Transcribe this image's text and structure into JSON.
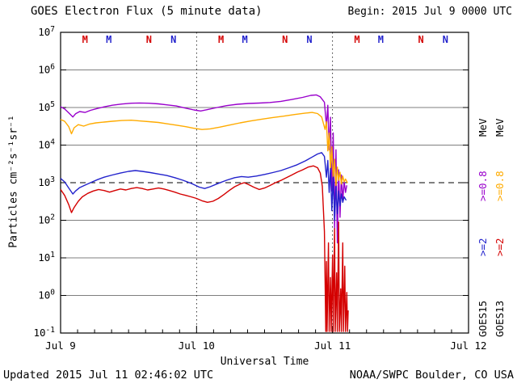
{
  "header": {
    "title": "GOES Electron Flux (5 minute data)",
    "begin": "Begin: 2015 Jul 9 0000 UTC"
  },
  "footer": {
    "updated": "Updated 2015 Jul 11 02:46:02 UTC",
    "credit": "NOAA/SWPC Boulder, CO USA"
  },
  "chart_data": {
    "type": "line",
    "title": "GOES Electron Flux (5 minute data)",
    "xlabel": "Universal Time",
    "ylabel": "Particles cm⁻²s⁻¹sr⁻¹",
    "x_range_days": [
      0,
      3
    ],
    "x_ticks": [
      {
        "t": 0,
        "label": "Jul 9"
      },
      {
        "t": 1,
        "label": "Jul 10"
      },
      {
        "t": 2,
        "label": "Jul 11"
      },
      {
        "t": 3,
        "label": "Jul 12"
      }
    ],
    "y_log_range": [
      -1,
      7
    ],
    "grid": true,
    "y_scale": "log10",
    "threshold_value": 1000,
    "day_boundaries": [
      1,
      2
    ],
    "axis_color": "#000000",
    "legend_position": "right-rotated",
    "series": [
      {
        "name": "GOES15 >=0.8 MeV",
        "color": "#9900cc",
        "points": [
          [
            0.0,
            105000.0
          ],
          [
            0.03,
            92000.0
          ],
          [
            0.06,
            72000.0
          ],
          [
            0.09,
            56000.0
          ],
          [
            0.11,
            68000.0
          ],
          [
            0.14,
            78000.0
          ],
          [
            0.18,
            74000.0
          ],
          [
            0.22,
            84000.0
          ],
          [
            0.27,
            94000.0
          ],
          [
            0.32,
            104000.0
          ],
          [
            0.38,
            115000.0
          ],
          [
            0.45,
            124000.0
          ],
          [
            0.52,
            130000.0
          ],
          [
            0.58,
            132000.0
          ],
          [
            0.65,
            130000.0
          ],
          [
            0.72,
            125000.0
          ],
          [
            0.78,
            118000.0
          ],
          [
            0.85,
            110000.0
          ],
          [
            0.92,
            96000.0
          ],
          [
            0.98,
            86000.0
          ],
          [
            1.03,
            81000.0
          ],
          [
            1.08,
            88000.0
          ],
          [
            1.15,
            100000.0
          ],
          [
            1.22,
            112000.0
          ],
          [
            1.3,
            122000.0
          ],
          [
            1.38,
            128000.0
          ],
          [
            1.46,
            131000.0
          ],
          [
            1.54,
            136000.0
          ],
          [
            1.62,
            146000.0
          ],
          [
            1.7,
            163000.0
          ],
          [
            1.78,
            186000.0
          ],
          [
            1.84,
            210000.0
          ],
          [
            1.88,
            216000.0
          ],
          [
            1.91,
            192000.0
          ],
          [
            1.94,
            138000.0
          ],
          [
            1.955,
            32000.0
          ],
          [
            1.965,
            115000.0
          ],
          [
            1.975,
            7500.0
          ],
          [
            1.985,
            55000.0
          ],
          [
            1.995,
            600.0
          ],
          [
            2.005,
            21000.0
          ],
          [
            2.015,
            60.0
          ],
          [
            2.025,
            7500.0
          ],
          [
            2.035,
            25.0
          ],
          [
            2.045,
            2200.0
          ],
          [
            2.055,
            120.0
          ],
          [
            2.065,
            1600.0
          ],
          [
            2.075,
            320.0
          ],
          [
            2.085,
            1100.0
          ],
          [
            2.095,
            550.0
          ],
          [
            2.105,
            850.0
          ]
        ]
      },
      {
        "name": "GOES13 >=0.8 MeV",
        "color": "#ffab00",
        "points": [
          [
            0.0,
            48000.0
          ],
          [
            0.03,
            43000.0
          ],
          [
            0.06,
            31000.0
          ],
          [
            0.08,
            20000.0
          ],
          [
            0.1,
            29000.0
          ],
          [
            0.13,
            35000.0
          ],
          [
            0.17,
            32000.0
          ],
          [
            0.21,
            36000.0
          ],
          [
            0.26,
            39000.0
          ],
          [
            0.32,
            41000.0
          ],
          [
            0.38,
            43000.0
          ],
          [
            0.45,
            45000.0
          ],
          [
            0.52,
            46000.0
          ],
          [
            0.58,
            44000.0
          ],
          [
            0.65,
            42000.0
          ],
          [
            0.72,
            40000.0
          ],
          [
            0.78,
            37000.0
          ],
          [
            0.85,
            34000.0
          ],
          [
            0.92,
            31000.0
          ],
          [
            0.98,
            28000.0
          ],
          [
            1.04,
            26000.0
          ],
          [
            1.1,
            27000.0
          ],
          [
            1.17,
            30000.0
          ],
          [
            1.24,
            34000.0
          ],
          [
            1.32,
            39000.0
          ],
          [
            1.4,
            44000.0
          ],
          [
            1.48,
            49000.0
          ],
          [
            1.56,
            54000.0
          ],
          [
            1.64,
            59000.0
          ],
          [
            1.72,
            65000.0
          ],
          [
            1.8,
            71000.0
          ],
          [
            1.85,
            74000.0
          ],
          [
            1.89,
            69000.0
          ],
          [
            1.92,
            56000.0
          ],
          [
            1.945,
            26000.0
          ],
          [
            1.955,
            42000.0
          ],
          [
            1.965,
            7000.0
          ],
          [
            1.975,
            21000.0
          ],
          [
            1.985,
            2200.0
          ],
          [
            1.995,
            9000.0
          ],
          [
            2.005,
            1300.0
          ],
          [
            2.015,
            4200.0
          ],
          [
            2.025,
            850.0
          ],
          [
            2.035,
            2600.0
          ],
          [
            2.045,
            1150.0
          ],
          [
            2.055,
            1900.0
          ],
          [
            2.065,
            920.0
          ],
          [
            2.075,
            1500.0
          ],
          [
            2.085,
            1050.0
          ],
          [
            2.095,
            1250.0
          ],
          [
            2.11,
            980.0
          ]
        ]
      },
      {
        "name": "GOES15 >=2 MeV",
        "color": "#2222cc",
        "points": [
          [
            0.0,
            1300.0
          ],
          [
            0.03,
            1050.0
          ],
          [
            0.06,
            720.0
          ],
          [
            0.09,
            500.0
          ],
          [
            0.11,
            600.0
          ],
          [
            0.14,
            740.0
          ],
          [
            0.18,
            860.0
          ],
          [
            0.22,
            1000.0
          ],
          [
            0.27,
            1200.0
          ],
          [
            0.32,
            1400.0
          ],
          [
            0.38,
            1600.0
          ],
          [
            0.44,
            1800.0
          ],
          [
            0.5,
            2000.0
          ],
          [
            0.55,
            2100.0
          ],
          [
            0.6,
            2000.0
          ],
          [
            0.66,
            1860.0
          ],
          [
            0.72,
            1700.0
          ],
          [
            0.78,
            1550.0
          ],
          [
            0.84,
            1360.0
          ],
          [
            0.9,
            1160.0
          ],
          [
            0.96,
            960.0
          ],
          [
            1.02,
            760.0
          ],
          [
            1.06,
            700.0
          ],
          [
            1.1,
            780.0
          ],
          [
            1.16,
            960.0
          ],
          [
            1.22,
            1160.0
          ],
          [
            1.28,
            1360.0
          ],
          [
            1.33,
            1460.0
          ],
          [
            1.38,
            1400.0
          ],
          [
            1.44,
            1500.0
          ],
          [
            1.5,
            1660.0
          ],
          [
            1.56,
            1860.0
          ],
          [
            1.62,
            2100.0
          ],
          [
            1.68,
            2500.0
          ],
          [
            1.74,
            3000.0
          ],
          [
            1.8,
            3800.0
          ],
          [
            1.85,
            4800.0
          ],
          [
            1.89,
            5800.0
          ],
          [
            1.92,
            6300.0
          ],
          [
            1.94,
            5000.0
          ],
          [
            1.955,
            1400.0
          ],
          [
            1.965,
            3900.0
          ],
          [
            1.975,
            550.0
          ],
          [
            1.985,
            2400.0
          ],
          [
            1.995,
            180.0
          ],
          [
            2.005,
            1400.0
          ],
          [
            2.015,
            100.0
          ],
          [
            2.025,
            780.0
          ],
          [
            2.035,
            150.0
          ],
          [
            2.045,
            600.0
          ],
          [
            2.055,
            240.0
          ],
          [
            2.065,
            500.0
          ],
          [
            2.075,
            300.0
          ],
          [
            2.085,
            420.0
          ],
          [
            2.1,
            340.0
          ]
        ]
      },
      {
        "name": "GOES13 >=2 MeV",
        "color": "#d40000",
        "points": [
          [
            0.0,
            660.0
          ],
          [
            0.03,
            460.0
          ],
          [
            0.06,
            260.0
          ],
          [
            0.08,
            160.0
          ],
          [
            0.1,
            220.0
          ],
          [
            0.13,
            320.0
          ],
          [
            0.16,
            420.0
          ],
          [
            0.2,
            520.0
          ],
          [
            0.24,
            600.0
          ],
          [
            0.28,
            660.0
          ],
          [
            0.32,
            620.0
          ],
          [
            0.36,
            560.0
          ],
          [
            0.4,
            620.0
          ],
          [
            0.44,
            680.0
          ],
          [
            0.48,
            640.0
          ],
          [
            0.52,
            700.0
          ],
          [
            0.56,
            740.0
          ],
          [
            0.6,
            700.0
          ],
          [
            0.64,
            640.0
          ],
          [
            0.68,
            680.0
          ],
          [
            0.72,
            720.0
          ],
          [
            0.76,
            680.0
          ],
          [
            0.8,
            620.0
          ],
          [
            0.84,
            560.0
          ],
          [
            0.88,
            500.0
          ],
          [
            0.92,
            460.0
          ],
          [
            0.96,
            420.0
          ],
          [
            1.0,
            380.0
          ],
          [
            1.04,
            330.0
          ],
          [
            1.08,
            300.0
          ],
          [
            1.12,
            320.0
          ],
          [
            1.16,
            380.0
          ],
          [
            1.2,
            480.0
          ],
          [
            1.24,
            620.0
          ],
          [
            1.28,
            780.0
          ],
          [
            1.32,
            920.0
          ],
          [
            1.35,
            1000.0
          ],
          [
            1.38,
            900.0
          ],
          [
            1.42,
            760.0
          ],
          [
            1.46,
            660.0
          ],
          [
            1.5,
            720.0
          ],
          [
            1.54,
            840.0
          ],
          [
            1.58,
            1000.0
          ],
          [
            1.62,
            1150.0
          ],
          [
            1.66,
            1350.0
          ],
          [
            1.7,
            1600.0
          ],
          [
            1.74,
            1900.0
          ],
          [
            1.78,
            2200.0
          ],
          [
            1.82,
            2600.0
          ],
          [
            1.86,
            2800.0
          ],
          [
            1.89,
            2500.0
          ],
          [
            1.91,
            1800.0
          ],
          [
            1.925,
            800.0
          ],
          [
            1.94,
            50.0
          ],
          [
            1.95,
            0.11
          ],
          [
            1.955,
            8.0
          ],
          [
            1.96,
            0.11
          ],
          [
            1.97,
            25.0
          ],
          [
            1.975,
            0.11
          ],
          [
            1.985,
            3.0
          ],
          [
            1.99,
            0.11
          ],
          [
            2.0,
            12.0
          ],
          [
            2.005,
            0.11
          ],
          [
            2.015,
            60.0
          ],
          [
            2.02,
            0.11
          ],
          [
            2.03,
            4.0
          ],
          [
            2.035,
            0.11
          ],
          [
            2.045,
            90.0
          ],
          [
            2.05,
            0.11
          ],
          [
            2.06,
            1.5
          ],
          [
            2.065,
            0.11
          ],
          [
            2.075,
            25.0
          ],
          [
            2.08,
            0.11
          ],
          [
            2.09,
            6.0
          ],
          [
            2.095,
            0.11
          ],
          [
            2.105,
            1.2
          ],
          [
            2.11,
            0.11
          ],
          [
            2.115,
            0.4
          ]
        ]
      }
    ],
    "markers": [
      {
        "t": 0.18,
        "label": "M",
        "satellite": "GOES13",
        "color": "#d40000"
      },
      {
        "t": 0.355,
        "label": "M",
        "satellite": "GOES15",
        "color": "#2222cc"
      },
      {
        "t": 0.65,
        "label": "N",
        "satellite": "GOES13",
        "color": "#d40000"
      },
      {
        "t": 0.83,
        "label": "N",
        "satellite": "GOES15",
        "color": "#2222cc"
      },
      {
        "t": 1.18,
        "label": "M",
        "satellite": "GOES13",
        "color": "#d40000"
      },
      {
        "t": 1.355,
        "label": "M",
        "satellite": "GOES15",
        "color": "#2222cc"
      },
      {
        "t": 1.65,
        "label": "N",
        "satellite": "GOES13",
        "color": "#d40000"
      },
      {
        "t": 1.83,
        "label": "N",
        "satellite": "GOES15",
        "color": "#2222cc"
      },
      {
        "t": 2.18,
        "label": "M",
        "satellite": "GOES13",
        "color": "#d40000"
      },
      {
        "t": 2.355,
        "label": "M",
        "satellite": "GOES15",
        "color": "#2222cc"
      },
      {
        "t": 2.65,
        "label": "N",
        "satellite": "GOES13",
        "color": "#d40000"
      },
      {
        "t": 2.83,
        "label": "N",
        "satellite": "GOES15",
        "color": "#2222cc"
      }
    ],
    "legend_columns": [
      {
        "satellite": "GOES15",
        "labels": [
          {
            "text": "GOES15",
            "color": "#000000"
          },
          {
            "text": ">=2",
            "color": "#2222cc"
          },
          {
            "text": ">=0.8",
            "color": "#9900cc"
          },
          {
            "text": "MeV",
            "color": "#000000"
          }
        ]
      },
      {
        "satellite": "GOES13",
        "labels": [
          {
            "text": "GOES13",
            "color": "#000000"
          },
          {
            "text": ">=2",
            "color": "#d40000"
          },
          {
            "text": ">=0.8",
            "color": "#ffab00"
          },
          {
            "text": "MeV",
            "color": "#000000"
          }
        ]
      }
    ]
  }
}
